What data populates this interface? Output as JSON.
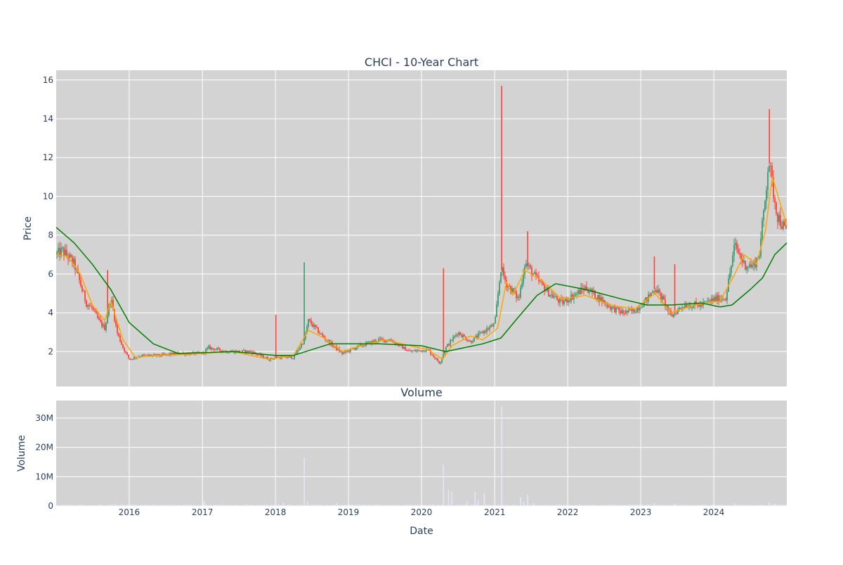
{
  "chart_data": [
    {
      "type": "candlestick",
      "title": "CHCI - 10-Year Chart",
      "ylabel": "Price",
      "ylim": [
        0.2,
        16.5
      ],
      "yticks": [
        2,
        4,
        6,
        8,
        10,
        12,
        14,
        16
      ],
      "xlim": [
        "2015-01-01",
        "2024-12-31"
      ],
      "grid": true,
      "colors": {
        "up": "#3d9970",
        "down": "#ff4136",
        "ma_short": "#ffa500",
        "ma_long": "#008000",
        "plot_bg": "#d3d3d3",
        "grid": "#ffffff"
      },
      "close_series": {
        "x": [
          "2015-01-01",
          "2015-02-01",
          "2015-03-01",
          "2015-04-01",
          "2015-05-01",
          "2015-06-01",
          "2015-07-01",
          "2015-08-01",
          "2015-09-01",
          "2015-10-01",
          "2015-11-01",
          "2015-12-01",
          "2016-01-01",
          "2016-03-01",
          "2016-06-01",
          "2016-09-01",
          "2017-01-01",
          "2017-02-01",
          "2017-05-01",
          "2017-09-01",
          "2017-12-01",
          "2018-01-01",
          "2018-04-01",
          "2018-05-25",
          "2018-06-15",
          "2018-09-01",
          "2018-12-01",
          "2019-03-01",
          "2019-06-01",
          "2019-08-01",
          "2019-11-01",
          "2020-02-01",
          "2020-04-01",
          "2020-05-01",
          "2020-07-01",
          "2020-09-01",
          "2020-11-01",
          "2021-01-01",
          "2021-02-01",
          "2021-03-01",
          "2021-05-01",
          "2021-06-01",
          "2021-08-01",
          "2021-10-01",
          "2021-12-01",
          "2022-04-01",
          "2022-08-01",
          "2022-10-01",
          "2022-12-01",
          "2023-02-01",
          "2023-03-15",
          "2023-05-01",
          "2023-06-01",
          "2023-08-01",
          "2023-11-01",
          "2024-01-01",
          "2024-03-01",
          "2024-04-15",
          "2024-06-01",
          "2024-07-15",
          "2024-08-15",
          "2024-09-15",
          "2024-10-01",
          "2024-10-20",
          "2024-11-15",
          "2024-12-31"
        ],
        "y": [
          7.0,
          7.2,
          6.9,
          6.5,
          5.5,
          4.5,
          4.2,
          3.6,
          3.2,
          4.8,
          3.0,
          2.2,
          1.6,
          1.8,
          1.8,
          1.9,
          1.9,
          2.2,
          2.0,
          2.0,
          1.6,
          1.7,
          1.7,
          2.6,
          3.6,
          2.7,
          1.9,
          2.3,
          2.6,
          2.6,
          2.0,
          2.1,
          1.4,
          2.2,
          3.0,
          2.5,
          3.0,
          3.4,
          6.3,
          5.5,
          4.7,
          6.6,
          5.7,
          5.0,
          4.5,
          5.3,
          4.3,
          4.0,
          4.1,
          4.7,
          5.3,
          4.5,
          3.8,
          4.4,
          4.4,
          4.7,
          4.8,
          7.5,
          6.5,
          6.4,
          7.0,
          10.0,
          12.0,
          10.5,
          9.0,
          8.1
        ],
        "spikes": [
          {
            "x": "2015-09-15",
            "high": 6.2
          },
          {
            "x": "2018-01-03",
            "high": 3.9
          },
          {
            "x": "2018-05-25",
            "high": 6.6
          },
          {
            "x": "2020-04-20",
            "high": 6.3
          },
          {
            "x": "2021-02-05",
            "high": 15.7
          },
          {
            "x": "2021-06-15",
            "high": 8.2
          },
          {
            "x": "2023-03-10",
            "high": 6.9
          },
          {
            "x": "2023-06-20",
            "high": 6.5
          },
          {
            "x": "2024-10-05",
            "high": 14.5
          }
        ]
      },
      "series": [
        {
          "name": "",
          "x": [
            "2015-01-01",
            "2015-03-01",
            "2015-05-01",
            "2015-07-01",
            "2015-09-01",
            "2015-10-01",
            "2015-12-01",
            "2016-02-01",
            "2016-06-01",
            "2017-01-01",
            "2017-06-01",
            "2017-12-01",
            "2018-04-01",
            "2018-06-15",
            "2018-09-01",
            "2018-12-01",
            "2019-04-01",
            "2019-07-01",
            "2020-02-01",
            "2020-04-15",
            "2020-06-01",
            "2020-09-01",
            "2020-11-01",
            "2021-01-15",
            "2021-03-01",
            "2021-04-01",
            "2021-06-01",
            "2021-09-01",
            "2021-12-01",
            "2022-04-01",
            "2022-08-01",
            "2022-12-01",
            "2023-03-15",
            "2023-06-01",
            "2023-10-01",
            "2024-02-01",
            "2024-04-15",
            "2024-06-01",
            "2024-08-01",
            "2024-09-15",
            "2024-10-20",
            "2024-12-31"
          ],
          "values": [
            7.0,
            6.9,
            6.0,
            4.4,
            3.6,
            4.6,
            2.6,
            1.7,
            1.8,
            1.9,
            2.0,
            1.6,
            1.8,
            3.1,
            2.7,
            2.0,
            2.4,
            2.6,
            2.1,
            1.6,
            2.3,
            2.8,
            2.6,
            3.2,
            5.6,
            4.9,
            6.2,
            5.6,
            4.7,
            4.9,
            4.4,
            4.2,
            5.0,
            4.0,
            4.4,
            4.6,
            6.0,
            7.0,
            6.5,
            8.2,
            11.0,
            8.5
          ]
        },
        {
          "name": "",
          "x": [
            "2015-01-01",
            "2015-04-01",
            "2015-07-01",
            "2015-10-01",
            "2016-01-01",
            "2016-05-01",
            "2016-09-01",
            "2017-06-01",
            "2018-01-01",
            "2018-04-01",
            "2018-10-01",
            "2019-06-01",
            "2020-01-01",
            "2020-05-01",
            "2020-11-01",
            "2021-02-01",
            "2021-05-01",
            "2021-08-01",
            "2021-11-01",
            "2022-04-01",
            "2022-10-01",
            "2023-02-01",
            "2023-06-01",
            "2023-11-01",
            "2024-02-01",
            "2024-04-01",
            "2024-07-01",
            "2024-09-01",
            "2024-11-01",
            "2024-12-31"
          ],
          "values": [
            8.4,
            7.6,
            6.5,
            5.2,
            3.5,
            2.4,
            1.9,
            2.0,
            1.8,
            1.8,
            2.4,
            2.4,
            2.3,
            2.0,
            2.4,
            2.7,
            3.8,
            4.9,
            5.5,
            5.2,
            4.7,
            4.4,
            4.4,
            4.5,
            4.3,
            4.4,
            5.2,
            5.8,
            7.0,
            7.6
          ]
        }
      ]
    },
    {
      "type": "bar",
      "title": "Volume",
      "xlabel": "Date",
      "ylabel": "Volume",
      "ylim": [
        0,
        36000000
      ],
      "yticks": [
        0,
        10000000,
        20000000,
        30000000
      ],
      "ytick_labels": [
        "0",
        "10M",
        "20M",
        "30M"
      ],
      "xlim": [
        "2015-01-01",
        "2024-12-31"
      ],
      "xticks": [
        "2016-01-01",
        "2017-01-01",
        "2018-01-01",
        "2019-01-01",
        "2020-01-01",
        "2021-01-01",
        "2022-01-01",
        "2023-01-01",
        "2024-01-01"
      ],
      "xtick_labels": [
        "2016",
        "2017",
        "2018",
        "2019",
        "2020",
        "2021",
        "2022",
        "2023",
        "2024"
      ],
      "grid": true,
      "bar_color": "#e6e6fa",
      "x": [
        "2016-09-01",
        "2017-01-10",
        "2018-01-03",
        "2018-02-10",
        "2018-05-25",
        "2018-06-10",
        "2018-08-01",
        "2018-11-01",
        "2019-06-01",
        "2020-03-01",
        "2020-04-20",
        "2020-05-15",
        "2020-06-01",
        "2020-08-15",
        "2020-09-25",
        "2020-10-10",
        "2020-11-10",
        "2021-02-05",
        "2021-05-10",
        "2021-05-25",
        "2021-06-15",
        "2021-07-15",
        "2022-03-01",
        "2023-03-10",
        "2023-06-20",
        "2024-04-15",
        "2024-10-05",
        "2024-11-01"
      ],
      "values": [
        400000,
        1800000,
        4000000,
        1200000,
        16500000,
        1500000,
        800000,
        1000000,
        500000,
        700000,
        14000000,
        5500000,
        5000000,
        1500000,
        4800000,
        2000000,
        4500000,
        34000000,
        3000000,
        1500000,
        3800000,
        1000000,
        500000,
        1000000,
        600000,
        900000,
        1200000,
        700000
      ]
    }
  ]
}
